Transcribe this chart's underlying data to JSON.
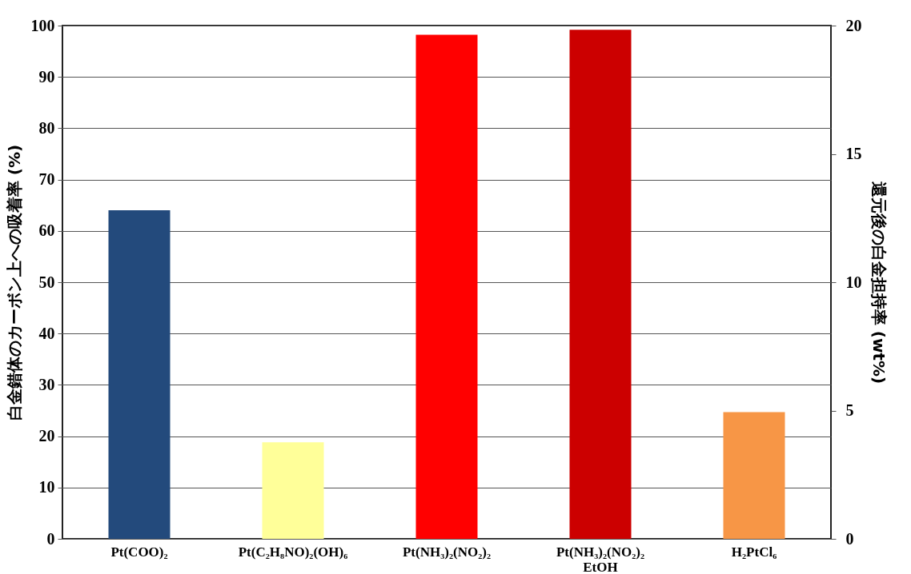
{
  "chart_data": {
    "type": "bar",
    "categories": [
      "Pt(COO)₂",
      "Pt(C₂H₈NO)₂(OH)₆",
      "Pt(NH₃)₂(NO₂)₂",
      "Pt(NH₃)₂(NO₂)₂\nEtOH",
      "H₂PtCl₆"
    ],
    "values": [
      64,
      18.8,
      98.2,
      99.2,
      24.7
    ],
    "colors": [
      "#234a7c",
      "#ffff99",
      "#ff0000",
      "#cc0000",
      "#f79646"
    ],
    "ylabel": "白金錯体のカーボン上への吸着率 (%)",
    "y2label": "還元後の白金担持率 (wt%)",
    "ylim": [
      0,
      100
    ],
    "yticks": [
      0,
      10,
      20,
      30,
      40,
      50,
      60,
      70,
      80,
      90,
      100
    ],
    "y2lim": [
      0,
      20
    ],
    "y2ticks": [
      0,
      5,
      10,
      15,
      20
    ],
    "grid": "y"
  }
}
